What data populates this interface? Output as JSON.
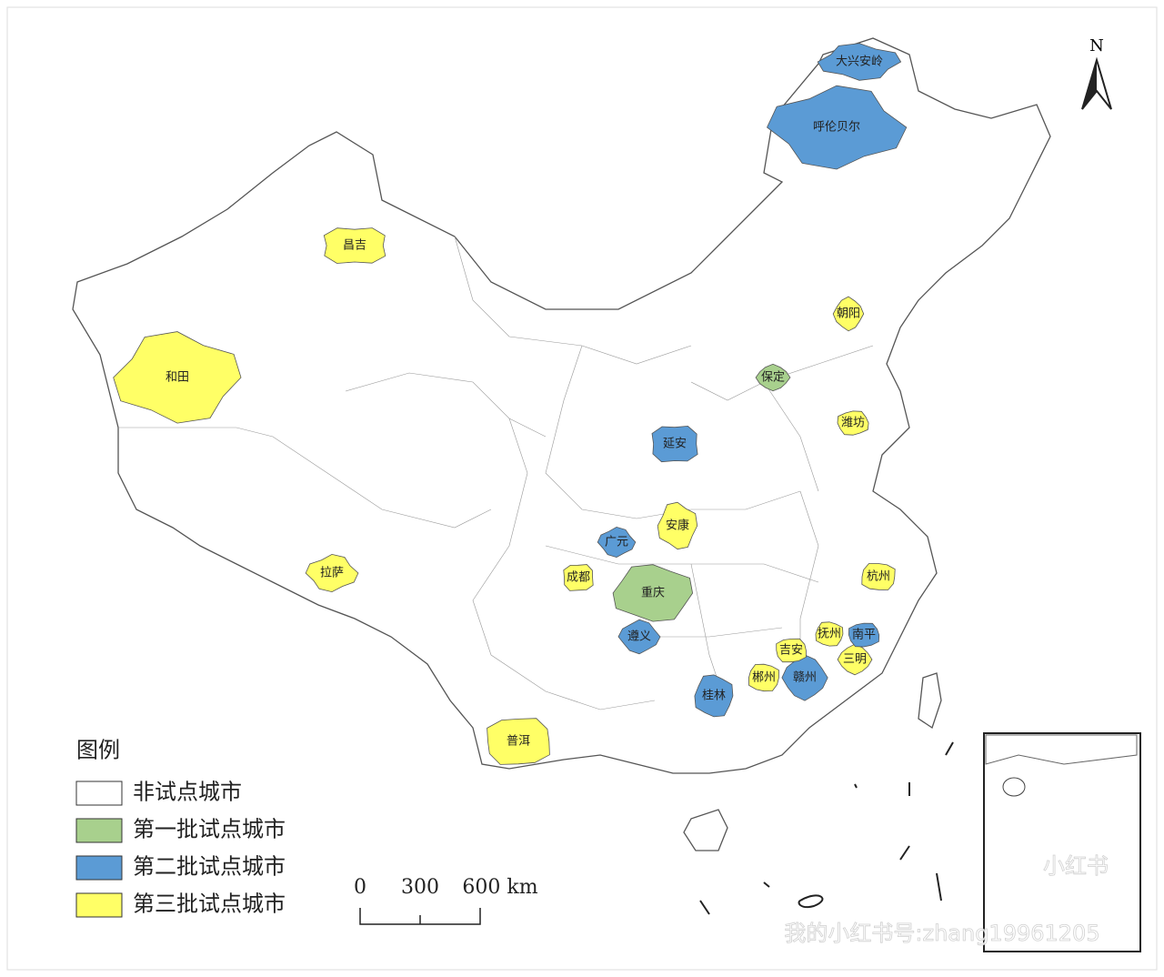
{
  "legend": {
    "title": "图例",
    "items": [
      {
        "label": "非试点城市",
        "color": "#ffffff"
      },
      {
        "label": "第一批试点城市",
        "color": "#a8d08d"
      },
      {
        "label": "第二批试点城市",
        "color": "#5b9bd5"
      },
      {
        "label": "第三批试点城市",
        "color": "#ffff66"
      }
    ]
  },
  "north": "N",
  "scale_bar": {
    "labels": [
      "0",
      "300",
      "600 km"
    ]
  },
  "cities": [
    {
      "name": "大兴安岭",
      "category": 2
    },
    {
      "name": "呼伦贝尔",
      "category": 2
    },
    {
      "name": "昌吉",
      "category": 3
    },
    {
      "name": "和田",
      "category": 3
    },
    {
      "name": "拉萨",
      "category": 3
    },
    {
      "name": "延安",
      "category": 2
    },
    {
      "name": "安康",
      "category": 3
    },
    {
      "name": "广元",
      "category": 2
    },
    {
      "name": "成都",
      "category": 3
    },
    {
      "name": "重庆",
      "category": 1
    },
    {
      "name": "遵义",
      "category": 2
    },
    {
      "name": "普洱",
      "category": 3
    },
    {
      "name": "桂林",
      "category": 2
    },
    {
      "name": "赣州",
      "category": 2
    },
    {
      "name": "吉安",
      "category": 3
    },
    {
      "name": "抚州",
      "category": 3
    },
    {
      "name": "三明",
      "category": 3
    },
    {
      "name": "南平",
      "category": 2
    },
    {
      "name": "郴州",
      "category": 3
    },
    {
      "name": "保定",
      "category": 1
    },
    {
      "name": "潍坊",
      "category": 3
    },
    {
      "name": "杭州",
      "category": 3
    },
    {
      "name": "朝阳",
      "category": 3
    }
  ],
  "watermark": [
    "小红书",
    "我的小红书号:zhang19961205"
  ]
}
